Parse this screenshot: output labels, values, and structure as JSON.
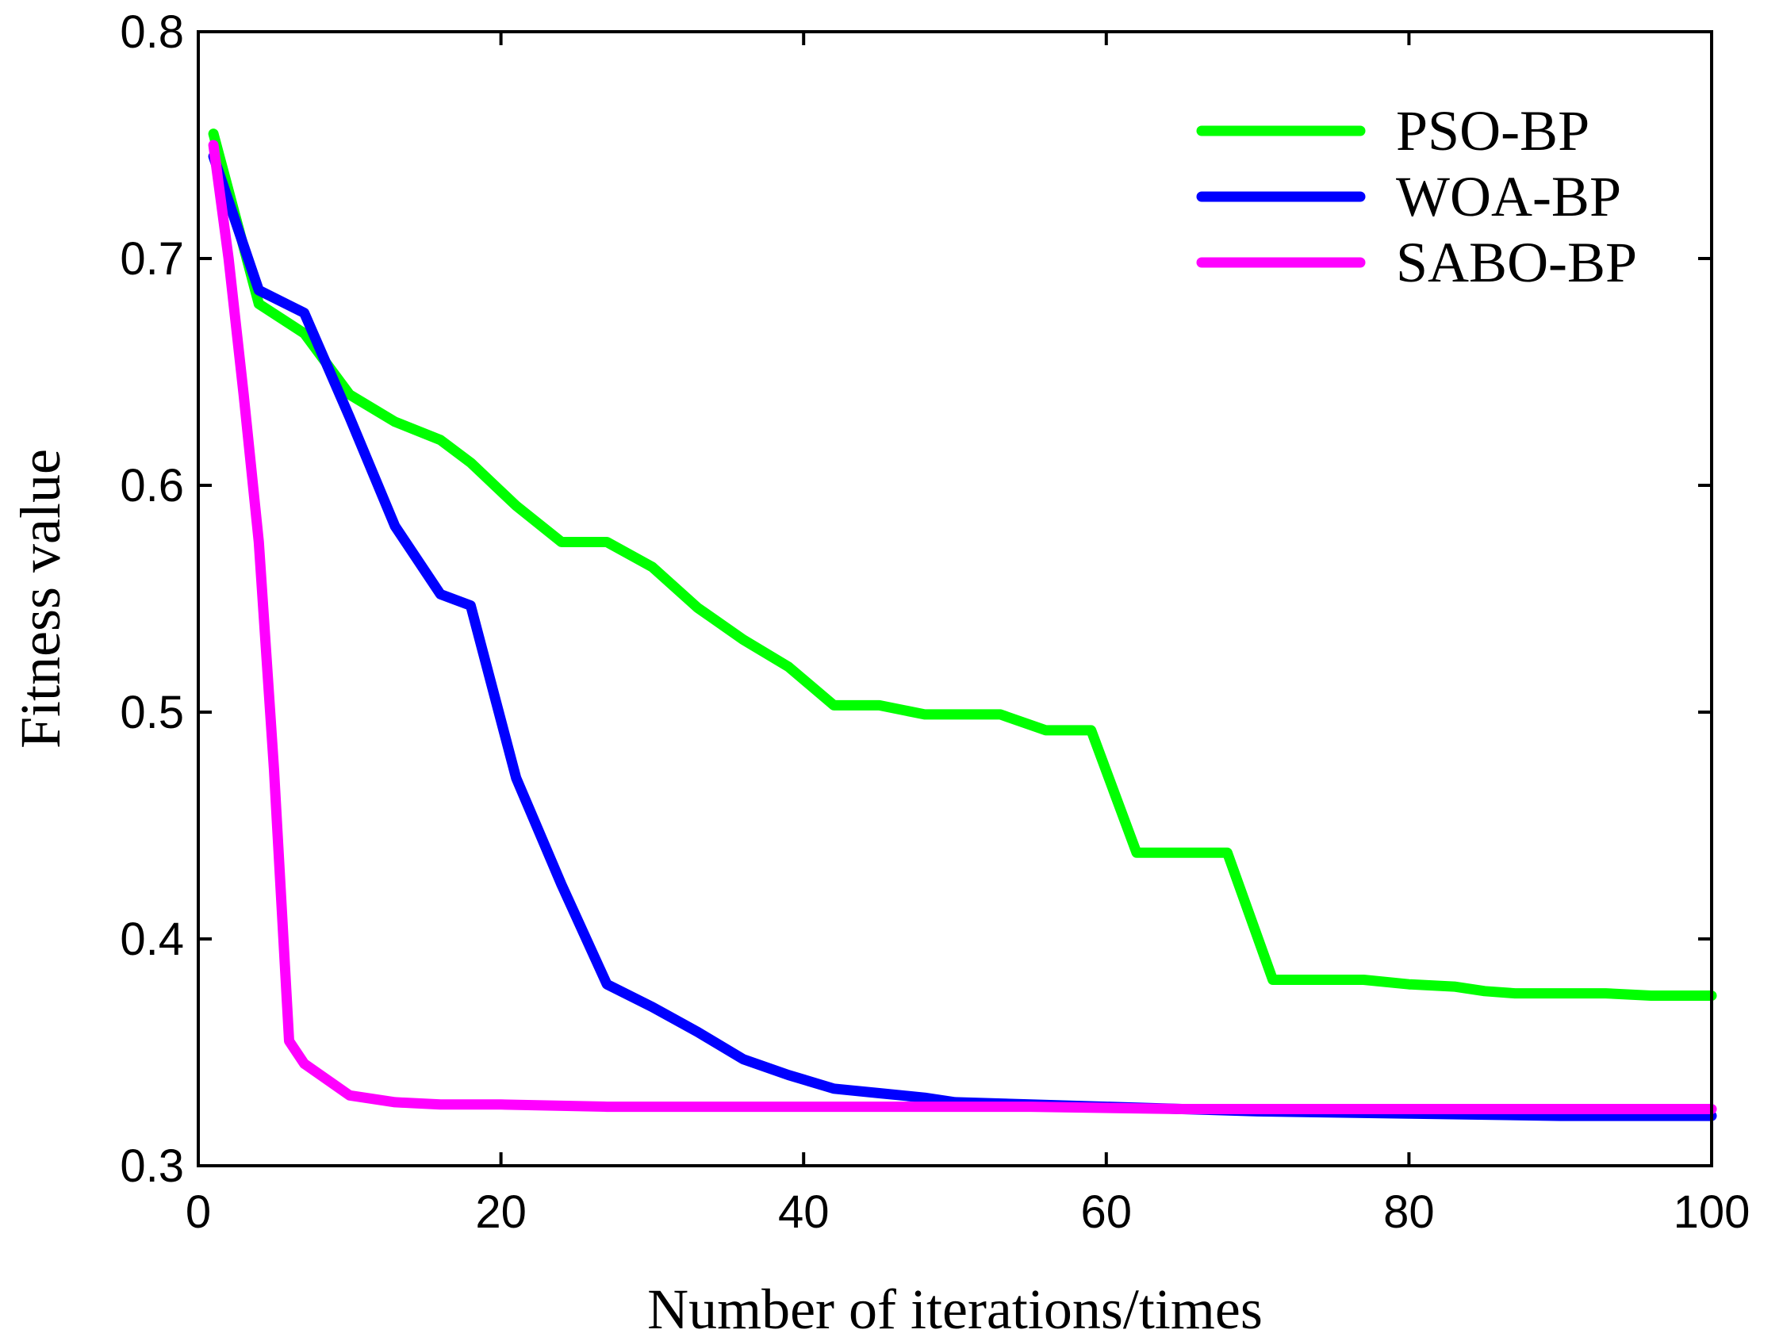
{
  "chart_data": {
    "type": "line",
    "title": "",
    "xlabel": "Number of iterations/times",
    "ylabel": "Fitness value",
    "xlim": [
      0,
      100
    ],
    "ylim": [
      0.3,
      0.8
    ],
    "xticks": [
      0,
      20,
      40,
      60,
      80,
      100
    ],
    "yticks": [
      0.3,
      0.4,
      0.5,
      0.6,
      0.7,
      0.8
    ],
    "xtick_labels": [
      "0",
      "20",
      "40",
      "60",
      "80",
      "100"
    ],
    "ytick_labels": [
      "0.3",
      "0.4",
      "0.5",
      "0.6",
      "0.7",
      "0.8"
    ],
    "grid": false,
    "legend_position": "top-right",
    "series": [
      {
        "name": "PSO-BP",
        "color": "#00ff00",
        "x": [
          1,
          4,
          7,
          10,
          13,
          16,
          18,
          21,
          24,
          27,
          30,
          33,
          36,
          39,
          42,
          45,
          48,
          50,
          53,
          56,
          59,
          62,
          65,
          68,
          71,
          74,
          77,
          80,
          83,
          85,
          87,
          90,
          93,
          96,
          100
        ],
        "y": [
          0.755,
          0.68,
          0.667,
          0.64,
          0.628,
          0.62,
          0.61,
          0.591,
          0.575,
          0.575,
          0.564,
          0.546,
          0.532,
          0.52,
          0.503,
          0.503,
          0.499,
          0.499,
          0.499,
          0.492,
          0.492,
          0.438,
          0.438,
          0.438,
          0.382,
          0.382,
          0.382,
          0.38,
          0.379,
          0.377,
          0.376,
          0.376,
          0.376,
          0.375,
          0.375
        ]
      },
      {
        "name": "WOA-BP",
        "color": "#0000ff",
        "x": [
          1,
          4,
          7,
          10,
          13,
          16,
          18,
          21,
          24,
          27,
          30,
          33,
          36,
          39,
          42,
          45,
          48,
          50,
          55,
          60,
          65,
          70,
          80,
          90,
          100
        ],
        "y": [
          0.745,
          0.686,
          0.676,
          0.63,
          0.582,
          0.552,
          0.547,
          0.471,
          0.424,
          0.38,
          0.37,
          0.359,
          0.347,
          0.34,
          0.334,
          0.332,
          0.33,
          0.328,
          0.327,
          0.326,
          0.325,
          0.324,
          0.323,
          0.322,
          0.322
        ]
      },
      {
        "name": "SABO-BP",
        "color": "#ff00ff",
        "x": [
          1,
          2,
          3,
          4,
          5,
          6,
          7,
          10,
          13,
          16,
          20,
          27,
          35,
          45,
          55,
          65,
          75,
          85,
          100
        ],
        "y": [
          0.75,
          0.7,
          0.64,
          0.575,
          0.475,
          0.355,
          0.345,
          0.331,
          0.328,
          0.327,
          0.327,
          0.326,
          0.326,
          0.326,
          0.326,
          0.325,
          0.325,
          0.325,
          0.325
        ]
      }
    ]
  }
}
